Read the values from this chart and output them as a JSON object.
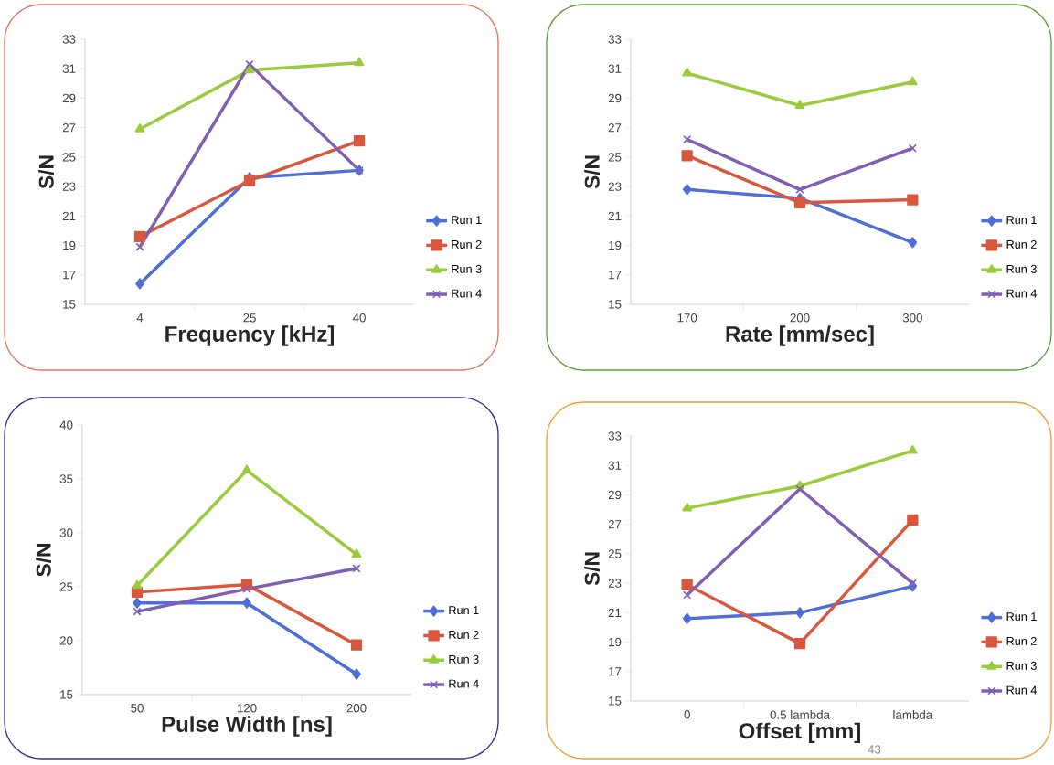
{
  "chart_data": [
    {
      "type": "line",
      "xlabel": "Frequency [kHz]",
      "ylabel": "S/N",
      "categories": [
        "4",
        "25",
        "40"
      ],
      "ylim": [
        15,
        33
      ],
      "yticks": [
        15,
        17,
        19,
        21,
        23,
        25,
        27,
        29,
        31,
        33
      ],
      "legend": "right",
      "series": [
        {
          "name": "Run 1",
          "color": "#4f6fd6",
          "marker": "diamond",
          "values": [
            16.4,
            23.6,
            24.1
          ]
        },
        {
          "name": "Run 2",
          "color": "#d9573c",
          "marker": "square",
          "values": [
            19.6,
            23.4,
            26.1
          ]
        },
        {
          "name": "Run 3",
          "color": "#9acb3c",
          "marker": "triangle",
          "values": [
            26.9,
            30.9,
            31.4
          ]
        },
        {
          "name": "Run 4",
          "color": "#7f5fb3",
          "marker": "cross",
          "values": [
            18.9,
            31.3,
            24.1
          ]
        }
      ]
    },
    {
      "type": "line",
      "xlabel": "Rate [mm/sec]",
      "ylabel": "S/N",
      "categories": [
        "170",
        "200",
        "300"
      ],
      "ylim": [
        15,
        33
      ],
      "yticks": [
        15,
        17,
        19,
        21,
        23,
        25,
        27,
        29,
        31,
        33
      ],
      "legend": "right",
      "series": [
        {
          "name": "Run 1",
          "color": "#4f6fd6",
          "marker": "diamond",
          "values": [
            22.8,
            22.2,
            19.2
          ]
        },
        {
          "name": "Run 2",
          "color": "#d9573c",
          "marker": "square",
          "values": [
            25.1,
            21.9,
            22.1
          ]
        },
        {
          "name": "Run 3",
          "color": "#9acb3c",
          "marker": "triangle",
          "values": [
            30.7,
            28.5,
            30.1
          ]
        },
        {
          "name": "Run 4",
          "color": "#7f5fb3",
          "marker": "cross",
          "values": [
            26.2,
            22.8,
            25.6
          ]
        }
      ]
    },
    {
      "type": "line",
      "xlabel": "Pulse Width [ns]",
      "ylabel": "S/N",
      "categories": [
        "50",
        "120",
        "200"
      ],
      "ylim": [
        15,
        40
      ],
      "yticks": [
        15,
        20,
        25,
        30,
        35,
        40
      ],
      "legend": "right",
      "series": [
        {
          "name": "Run 1",
          "color": "#4f6fd6",
          "marker": "diamond",
          "values": [
            23.5,
            23.5,
            16.9
          ]
        },
        {
          "name": "Run 2",
          "color": "#d9573c",
          "marker": "square",
          "values": [
            24.5,
            25.2,
            19.6
          ]
        },
        {
          "name": "Run 3",
          "color": "#9acb3c",
          "marker": "triangle",
          "values": [
            25.1,
            35.8,
            28.0
          ]
        },
        {
          "name": "Run 4",
          "color": "#7f5fb3",
          "marker": "cross",
          "values": [
            22.7,
            24.8,
            26.7
          ]
        }
      ]
    },
    {
      "type": "line",
      "xlabel": "Offset [mm]",
      "ylabel": "S/N",
      "categories": [
        "0",
        "0.5 lambda",
        "lambda"
      ],
      "ylim": [
        15,
        33
      ],
      "yticks": [
        15,
        17,
        19,
        21,
        23,
        25,
        27,
        29,
        31,
        33
      ],
      "legend": "right",
      "annotations": [
        "43"
      ],
      "series": [
        {
          "name": "Run 1",
          "color": "#4f6fd6",
          "marker": "diamond",
          "values": [
            20.6,
            21.0,
            22.8
          ]
        },
        {
          "name": "Run 2",
          "color": "#d9573c",
          "marker": "square",
          "values": [
            22.9,
            18.9,
            27.3
          ]
        },
        {
          "name": "Run 3",
          "color": "#9acb3c",
          "marker": "triangle",
          "values": [
            28.1,
            29.6,
            32.0
          ]
        },
        {
          "name": "Run 4",
          "color": "#7f5fb3",
          "marker": "cross",
          "values": [
            22.2,
            29.4,
            23.0
          ]
        }
      ]
    }
  ]
}
